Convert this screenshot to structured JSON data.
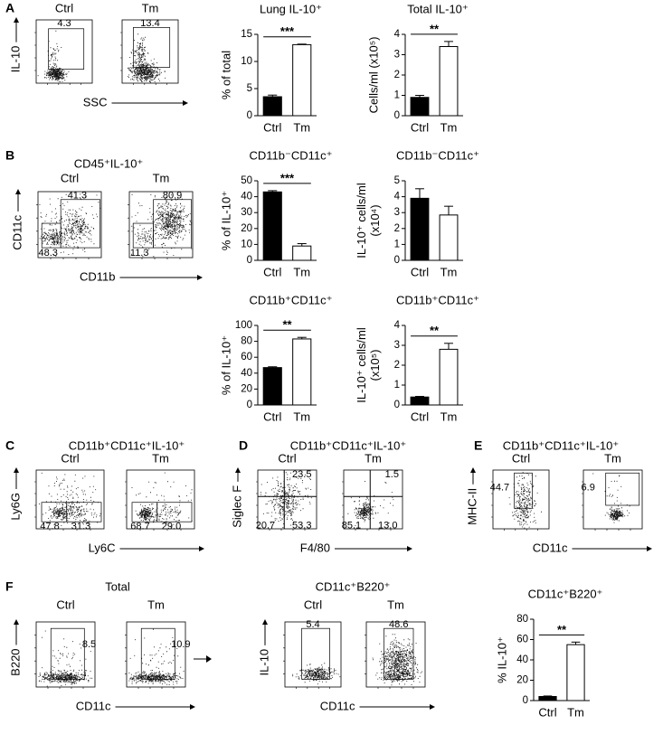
{
  "panel_letters": [
    "A",
    "B",
    "C",
    "D",
    "E",
    "F"
  ],
  "flow_groups": [
    {
      "ylabel": "IL-10",
      "xlabel": "SSC",
      "plots": [
        {
          "header": "Ctrl",
          "gates": [
            "4.3"
          ]
        },
        {
          "header": "Tm",
          "gates": [
            "13.4"
          ]
        }
      ]
    },
    {
      "title": "CD45⁺IL-10⁺",
      "ylabel": "CD11c",
      "xlabel": "CD11b",
      "plots": [
        {
          "header": "Ctrl",
          "gates": [
            "41.3",
            "48.3"
          ]
        },
        {
          "header": "Tm",
          "gates": [
            "80.9",
            "11.3"
          ]
        }
      ]
    },
    {
      "title": "CD11b⁺CD11c⁺IL-10⁺",
      "ylabel": "Ly6G",
      "xlabel": "Ly6C",
      "plots": [
        {
          "header": "Ctrl",
          "gates": [
            "47.8",
            "31.3"
          ]
        },
        {
          "header": "Tm",
          "gates": [
            "68.7",
            "29.0"
          ]
        }
      ]
    },
    {
      "title": "CD11b⁺CD11c⁺IL-10⁺",
      "ylabel": "Siglec F",
      "xlabel": "F4/80",
      "plots": [
        {
          "header": "Ctrl",
          "gates": [
            "23.5",
            "20.7",
            "53.3"
          ]
        },
        {
          "header": "Tm",
          "gates": [
            "1.5",
            "85.1",
            "13.0"
          ]
        }
      ]
    },
    {
      "title": "CD11b⁺CD11c⁺IL-10⁺",
      "ylabel": "MHC-II",
      "xlabel": "CD11c",
      "plots": [
        {
          "header": "Ctrl",
          "gates": [
            "44.7"
          ]
        },
        {
          "header": "Tm",
          "gates": [
            "6.9"
          ]
        }
      ]
    },
    {
      "title": "Total",
      "ylabel": "B220",
      "xlabel": "CD11c",
      "plots": [
        {
          "header": "Ctrl",
          "gates": [
            "8.5"
          ]
        },
        {
          "header": "Tm",
          "gates": [
            "10.9"
          ]
        }
      ]
    },
    {
      "title": "CD11c⁺B220⁺",
      "ylabel": "IL-10",
      "xlabel": "CD11c",
      "plots": [
        {
          "header": "Ctrl",
          "gates": [
            "5.4"
          ]
        },
        {
          "header": "Tm",
          "gates": [
            "48.6"
          ]
        }
      ]
    }
  ],
  "chart_data": [
    {
      "type": "bar",
      "title": "Lung IL-10⁺",
      "ylabel": "% of total",
      "categories": [
        "Ctrl",
        "Tm"
      ],
      "values": [
        3.5,
        13.1
      ],
      "errors": [
        0.3,
        0.1
      ],
      "colors": [
        "#000000",
        "#ffffff"
      ],
      "ylim": [
        0,
        15
      ],
      "yticks": [
        0,
        5,
        10,
        15
      ],
      "significance": "***"
    },
    {
      "type": "bar",
      "title": "Total IL-10⁺",
      "ylabel": "Cells/ml (x10⁵)",
      "categories": [
        "Ctrl",
        "Tm"
      ],
      "values": [
        0.9,
        3.4
      ],
      "errors": [
        0.1,
        0.25
      ],
      "colors": [
        "#000000",
        "#ffffff"
      ],
      "ylim": [
        0,
        4
      ],
      "yticks": [
        0,
        1,
        2,
        3,
        4
      ],
      "significance": "**"
    },
    {
      "type": "bar",
      "title": "CD11b⁻CD11c⁺",
      "ylabel": "% of IL-10⁺",
      "categories": [
        "Ctrl",
        "Tm"
      ],
      "values": [
        43,
        9
      ],
      "errors": [
        0.8,
        1.5
      ],
      "colors": [
        "#000000",
        "#ffffff"
      ],
      "ylim": [
        0,
        50
      ],
      "yticks": [
        0,
        10,
        20,
        30,
        40,
        50
      ],
      "significance": "***"
    },
    {
      "type": "bar",
      "title": "CD11b⁻CD11c⁺",
      "ylabel": [
        "IL-10⁺ cells/ml",
        "(x10⁴)"
      ],
      "categories": [
        "Ctrl",
        "Tm"
      ],
      "values": [
        3.9,
        2.85
      ],
      "errors": [
        0.6,
        0.55
      ],
      "colors": [
        "#000000",
        "#ffffff"
      ],
      "ylim": [
        0,
        5
      ],
      "yticks": [
        0,
        1,
        2,
        3,
        4,
        5
      ]
    },
    {
      "type": "bar",
      "title": "CD11b⁺CD11c⁺",
      "ylabel": "% of IL-10⁺",
      "categories": [
        "Ctrl",
        "Tm"
      ],
      "values": [
        47,
        83
      ],
      "errors": [
        1,
        2
      ],
      "colors": [
        "#000000",
        "#ffffff"
      ],
      "ylim": [
        0,
        100
      ],
      "yticks": [
        0,
        20,
        40,
        60,
        80,
        100
      ],
      "significance": "**"
    },
    {
      "type": "bar",
      "title": "CD11b⁺CD11c⁺",
      "ylabel": [
        "IL-10⁺ cells/ml",
        "(x10⁵)"
      ],
      "categories": [
        "Ctrl",
        "Tm"
      ],
      "values": [
        0.4,
        2.8
      ],
      "errors": [
        0.03,
        0.3
      ],
      "colors": [
        "#000000",
        "#ffffff"
      ],
      "ylim": [
        0,
        4
      ],
      "yticks": [
        0,
        1,
        2,
        3,
        4
      ],
      "significance": "**"
    },
    {
      "type": "bar",
      "title": "CD11c⁺B220⁺",
      "ylabel": "% IL-10⁺",
      "categories": [
        "Ctrl",
        "Tm"
      ],
      "values": [
        4,
        55
      ],
      "errors": [
        0.5,
        2.5
      ],
      "colors": [
        "#000000",
        "#ffffff"
      ],
      "ylim": [
        0,
        80
      ],
      "yticks": [
        0,
        20,
        40,
        60,
        80
      ],
      "significance": "**"
    }
  ]
}
